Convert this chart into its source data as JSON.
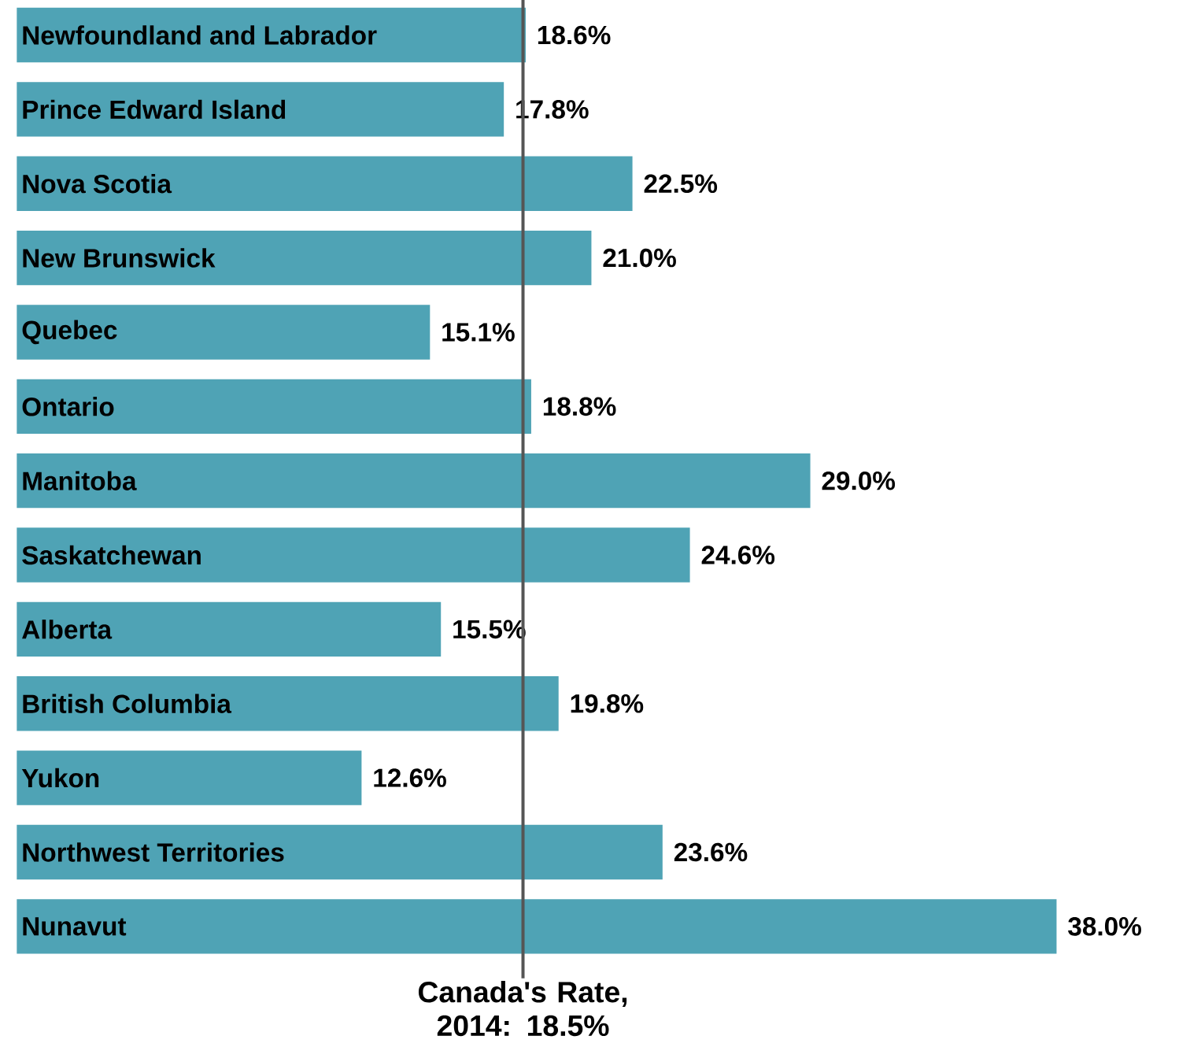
{
  "chart_data": {
    "type": "bar",
    "orientation": "horizontal",
    "categories": [
      "Newfoundland and Labrador",
      "Prince Edward Island",
      "Nova Scotia",
      "New Brunswick",
      "Quebec",
      "Ontario",
      "Manitoba",
      "Saskatchewan",
      "Alberta",
      "British Columbia",
      "Yukon",
      "Northwest Territories",
      "Nunavut"
    ],
    "values": [
      18.6,
      17.8,
      22.5,
      21.0,
      15.1,
      18.8,
      29.0,
      24.6,
      15.5,
      19.8,
      12.6,
      23.6,
      38.0
    ],
    "value_labels": [
      "18.6%",
      "17.8%",
      "22.5%",
      "21.0%",
      "15.1%",
      "18.8%",
      "29.0%",
      "24.6%",
      "15.5%",
      "19.8%",
      "12.6%",
      "23.6%",
      "38.0%"
    ],
    "color": "#4fa3b5",
    "ref_lines": [
      {
        "axis": "x",
        "value": 18.5,
        "label": "Canada's Rate, 2014: 18.5%",
        "color": "#555555"
      }
    ]
  }
}
